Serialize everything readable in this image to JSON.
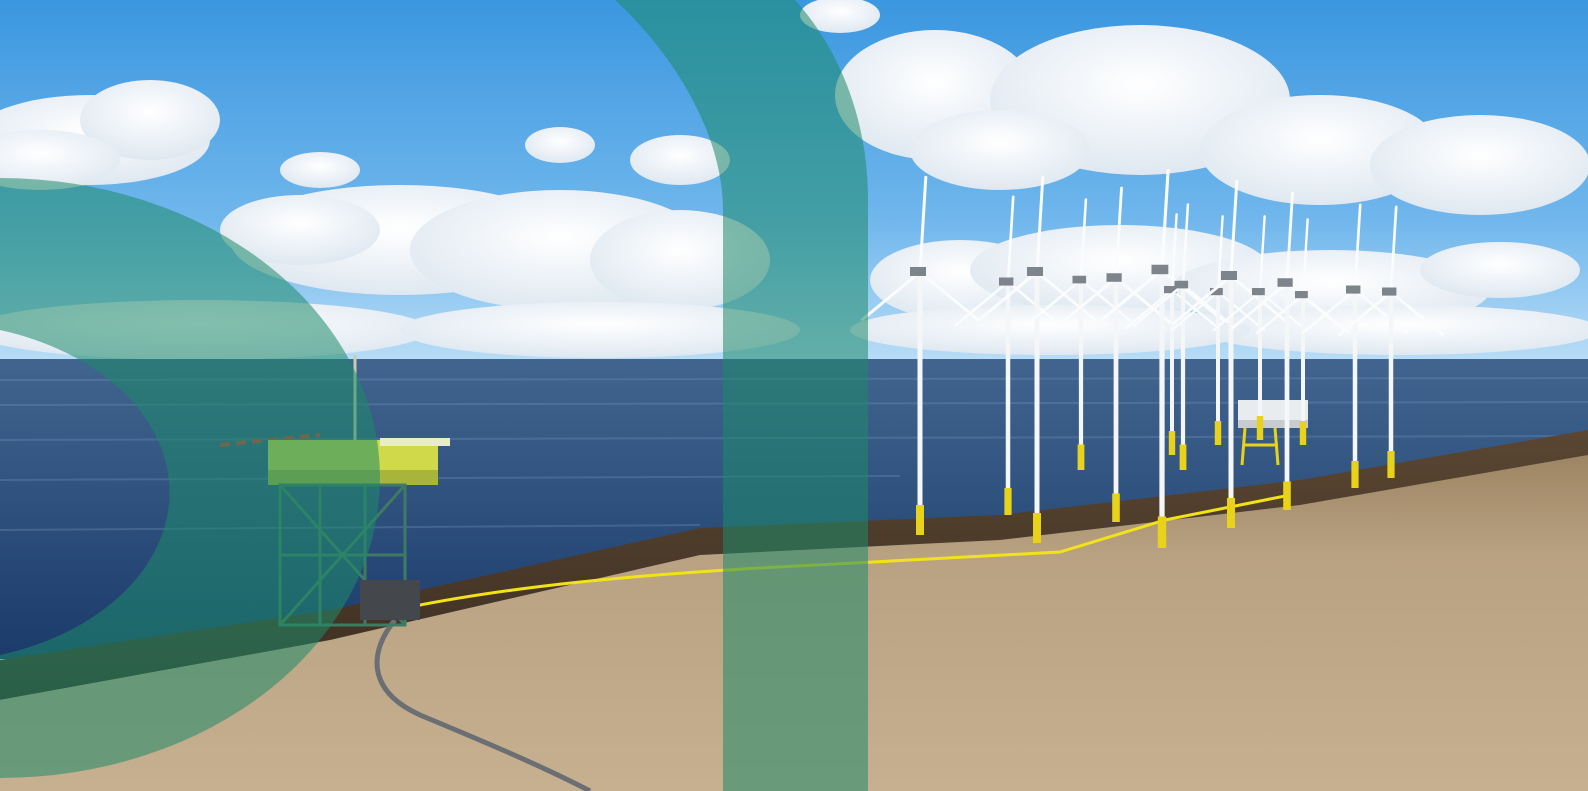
{
  "scene": {
    "description_free": true,
    "colors": {
      "sky_top": "#3d9ae3",
      "sky_bottom": "#a9d6f5",
      "sea_far": "#3a5f8c",
      "sea_near": "#1e3f70",
      "seabed_light": "#c2ad8c",
      "seabed_dark": "#8a7354",
      "overlay_green": "#1e8a6a",
      "cable_yellow": "#f2e21a",
      "cable_grey": "#6b6e73",
      "platform_green": "#3f7a62",
      "platform_yellow": "#d8e04a",
      "turbine_white": "#f4f6f8",
      "foundation_yellow": "#e9d21a"
    },
    "icons": [
      "offshore-platform",
      "wind-turbine",
      "substation-platform",
      "export-cable",
      "inter-array-cable"
    ]
  }
}
